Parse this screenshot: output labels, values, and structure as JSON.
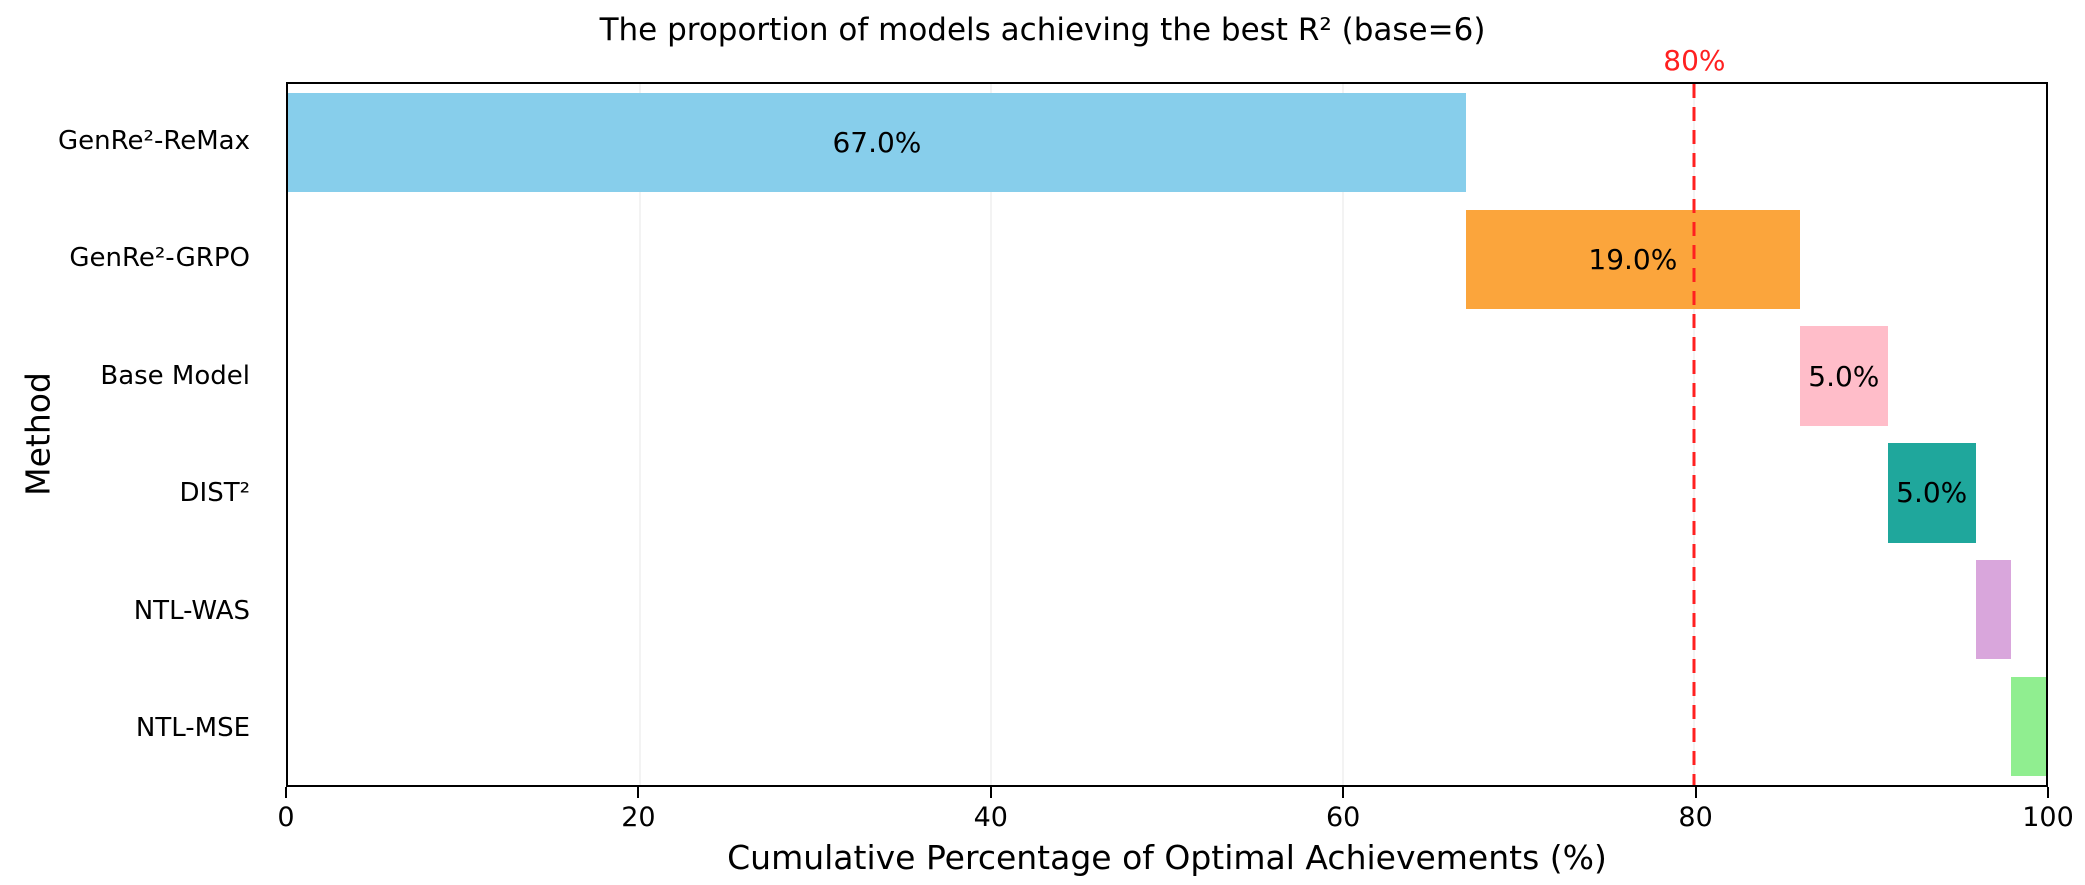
{
  "chart_data": {
    "type": "bar",
    "variant": "horizontal-waterfall",
    "title": "The proportion of models achieving the best R² (base=6)",
    "xlabel": "Cumulative Percentage of Optimal Achievements (%)",
    "ylabel": "Method",
    "xlim": [
      0,
      100
    ],
    "xticks": [
      0,
      20,
      40,
      60,
      80,
      100
    ],
    "grid": true,
    "legend": "none",
    "categories": [
      "GenRe²-ReMax",
      "GenRe²-GRPO",
      "Base Model",
      "DIST²",
      "NTL-WAS",
      "NTL-MSE"
    ],
    "values": [
      67.0,
      19.0,
      5.0,
      5.0,
      2.0,
      2.0
    ],
    "bar_labels": [
      "67.0%",
      "19.0%",
      "5.0%",
      "5.0%",
      "",
      ""
    ],
    "bar_colors": [
      "#87CEEB",
      "#FBA53C",
      "#FFBDC9",
      "#1FA79C",
      "#D9A6DC",
      "#90EE90"
    ],
    "reference_line": {
      "x": 80,
      "label": "80%",
      "color": "#FF2020",
      "style": "dashed"
    }
  }
}
